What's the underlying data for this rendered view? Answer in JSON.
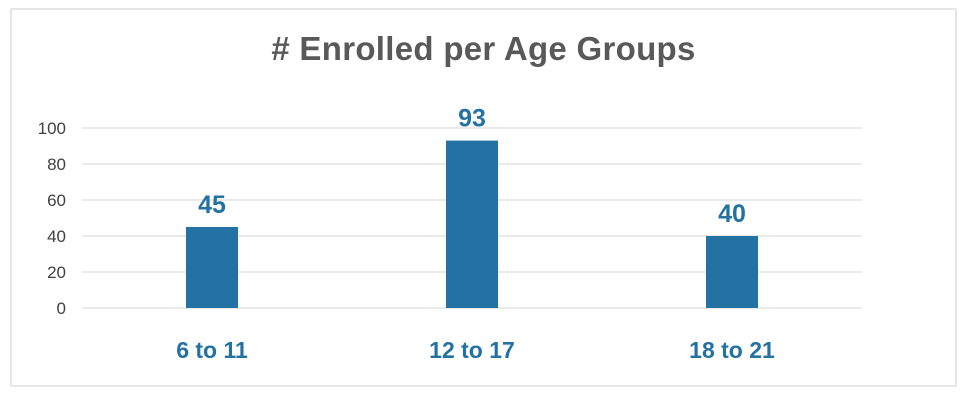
{
  "colors": {
    "bar": "#2471a3",
    "label": "#2471a3",
    "grid": "#e3e3e3",
    "title": "#595959"
  },
  "chart_data": {
    "type": "bar",
    "title": "# Enrolled per Age Groups",
    "xlabel": "",
    "ylabel": "",
    "categories": [
      "6 to 11",
      "12 to 17",
      "18 to 21"
    ],
    "values": [
      45,
      93,
      40
    ],
    "ylim": [
      0,
      100
    ],
    "yticks": [
      0,
      20,
      40,
      60,
      80,
      100
    ],
    "grid": true,
    "legend": "none",
    "data_labels": true
  }
}
